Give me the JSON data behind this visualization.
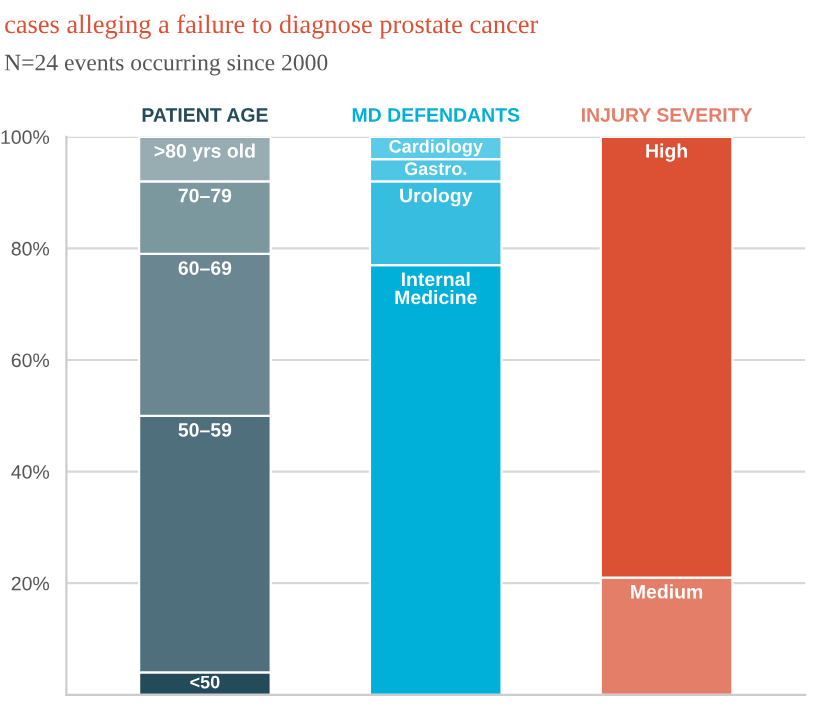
{
  "chart_data": {
    "type": "bar",
    "stacked": true,
    "title": "cases alleging a failure to diagnose prostate cancer",
    "subtitle": "N=24 events occurring since 2000",
    "categories": [
      "PATIENT AGE",
      "MD DEFENDANTS",
      "INJURY SEVERITY"
    ],
    "series": [
      {
        "name": "<50",
        "color": "#234b5a",
        "values": [
          4,
          null,
          null
        ]
      },
      {
        "name": "50–59",
        "color": "#4e6f7b",
        "values": [
          46,
          null,
          null
        ]
      },
      {
        "name": "60–69",
        "color": "#6a8791",
        "values": [
          29,
          null,
          null
        ]
      },
      {
        "name": "70–79",
        "color": "#7c989f",
        "values": [
          13,
          null,
          null
        ]
      },
      {
        "name": ">80 yrs old",
        "color": "#97adb2",
        "values": [
          8,
          null,
          null
        ]
      },
      {
        "name": "Internal\nMedicine",
        "color": "#00b0d8",
        "values": [
          null,
          77,
          null
        ]
      },
      {
        "name": "Urology",
        "color": "#36bde0",
        "values": [
          null,
          15,
          null
        ]
      },
      {
        "name": "Gastro.",
        "color": "#4fc6e4",
        "values": [
          null,
          4,
          null
        ]
      },
      {
        "name": "Cardiology",
        "color": "#5ccbe8",
        "values": [
          null,
          4,
          null
        ]
      },
      {
        "name": "Medium",
        "color": "#e57e69",
        "values": [
          null,
          null,
          21
        ]
      },
      {
        "name": "High",
        "color": "#dc5034",
        "values": [
          null,
          null,
          79
        ]
      }
    ],
    "ylim": [
      0,
      100
    ],
    "yticks": [
      {
        "value": 20,
        "label": "20%"
      },
      {
        "value": 40,
        "label": "40%"
      },
      {
        "value": 60,
        "label": "60%"
      },
      {
        "value": 80,
        "label": "80%"
      },
      {
        "value": 100,
        "label": "100%"
      }
    ],
    "grid": "y",
    "legend": false
  }
}
